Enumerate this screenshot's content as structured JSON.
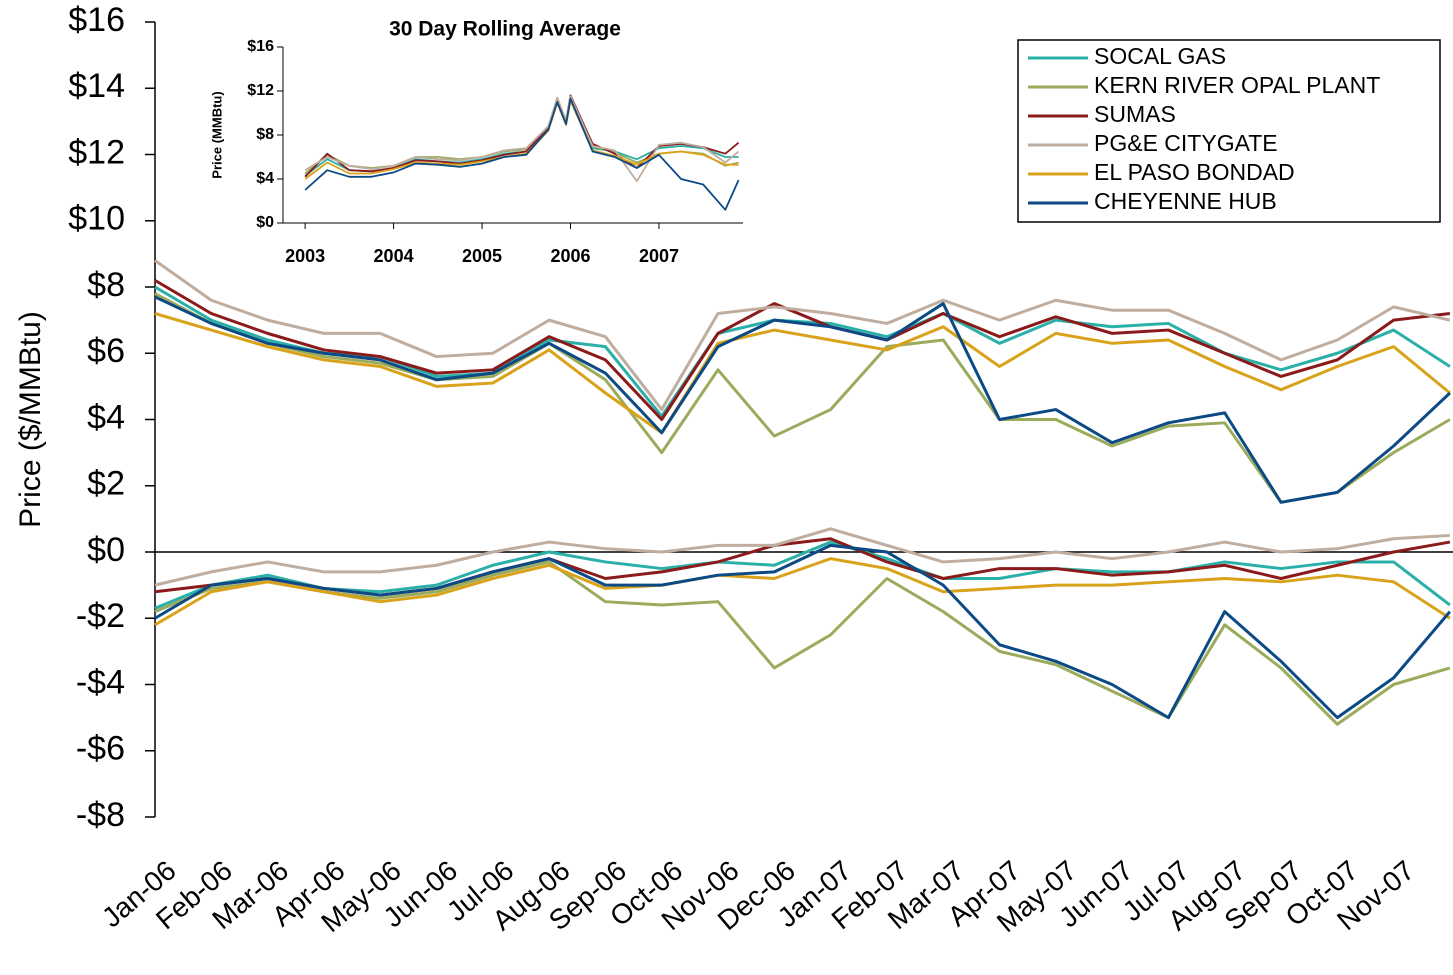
{
  "chart_data": [
    {
      "type": "line",
      "y_label": "Price ($/MMBtu)",
      "legend": "upper right",
      "categories": [
        "Jan-06",
        "Feb-06",
        "Mar-06",
        "Apr-06",
        "May-06",
        "Jun-06",
        "Jul-06",
        "Aug-06",
        "Sep-06",
        "Oct-06",
        "Nov-06",
        "Dec-06",
        "Jan-07",
        "Feb-07",
        "Mar-07",
        "Apr-07",
        "May-07",
        "Jun-07",
        "Jul-07",
        "Aug-07",
        "Sep-07",
        "Oct-07",
        "Nov-07",
        null
      ],
      "ylim": [
        -8,
        16
      ],
      "yticks": [
        {
          "value": 16,
          "label": "$16"
        },
        {
          "value": 14,
          "label": "$14"
        },
        {
          "value": 12,
          "label": "$12"
        },
        {
          "value": 10,
          "label": "$10"
        },
        {
          "value": 8,
          "label": "$8"
        },
        {
          "value": 6,
          "label": "$6"
        },
        {
          "value": 4,
          "label": "$4"
        },
        {
          "value": 2,
          "label": "$2"
        },
        {
          "value": 0,
          "label": "$0"
        },
        {
          "value": -2,
          "label": "-$2"
        },
        {
          "value": -4,
          "label": "-$4"
        },
        {
          "value": -6,
          "label": "-$6"
        },
        {
          "value": -8,
          "label": "-$8"
        }
      ],
      "series": [
        {
          "name": "SOCAL GAS",
          "color": "#2ab0a8",
          "values": [
            8,
            7.0,
            6.4,
            6.0,
            5.9,
            5.3,
            5.4,
            6.4,
            6.2,
            4.1,
            6.6,
            7.0,
            6.9,
            6.5,
            7.2,
            6.3,
            7.0,
            6.8,
            6.9,
            6.0,
            5.5,
            6.0,
            6.7,
            5.6
          ],
          "basis": [
            -1.7,
            -1.0,
            -0.7,
            -1.1,
            -1.2,
            -1.0,
            -0.4,
            0.0,
            -0.3,
            -0.5,
            -0.3,
            -0.4,
            0.3,
            -0.2,
            -0.8,
            -0.8,
            -0.5,
            -0.6,
            -0.6,
            -0.3,
            -0.5,
            -0.3,
            -0.3,
            -1.6
          ]
        },
        {
          "name": "KERN RIVER OPAL PLANT",
          "color": "#9aab5c",
          "values": [
            7.8,
            6.9,
            6.3,
            5.9,
            5.7,
            5.2,
            5.3,
            6.3,
            5.2,
            3.0,
            5.5,
            3.5,
            4.3,
            6.2,
            6.4,
            4.0,
            4.0,
            3.2,
            3.8,
            3.9,
            1.5,
            1.8,
            3.0,
            4.0
          ],
          "basis": [
            -1.8,
            -1.1,
            -0.9,
            -1.2,
            -1.4,
            -1.2,
            -0.7,
            -0.3,
            -1.5,
            -1.6,
            -1.5,
            -3.5,
            -2.5,
            -0.8,
            -1.8,
            -3.0,
            -3.4,
            -4.2,
            -5.0,
            -2.2,
            -3.5,
            -5.2,
            -4.0,
            -3.5
          ]
        },
        {
          "name": "SUMAS",
          "color": "#8b1a1a",
          "values": [
            8.2,
            7.2,
            6.6,
            6.1,
            5.9,
            5.4,
            5.5,
            6.5,
            5.8,
            4.0,
            6.6,
            7.5,
            6.8,
            6.4,
            7.2,
            6.5,
            7.1,
            6.6,
            6.7,
            6.0,
            5.3,
            5.8,
            7.0,
            7.2
          ],
          "basis": [
            -1.2,
            -1.0,
            -0.8,
            -1.1,
            -1.3,
            -1.1,
            -0.6,
            -0.2,
            -0.8,
            -0.6,
            -0.3,
            0.2,
            0.4,
            -0.3,
            -0.8,
            -0.5,
            -0.5,
            -0.7,
            -0.6,
            -0.4,
            -0.8,
            -0.4,
            0.0,
            0.3
          ]
        },
        {
          "name": "PG&E CITYGATE",
          "color": "#bfada0",
          "values": [
            8.8,
            7.6,
            7.0,
            6.6,
            6.6,
            5.9,
            6.0,
            7.0,
            6.5,
            4.3,
            7.2,
            7.4,
            7.2,
            6.9,
            7.6,
            7.0,
            7.6,
            7.3,
            7.3,
            6.6,
            5.8,
            6.4,
            7.4,
            7.0
          ],
          "basis": [
            -1.0,
            -0.6,
            -0.3,
            -0.6,
            -0.6,
            -0.4,
            0.0,
            0.3,
            0.1,
            0.0,
            0.2,
            0.2,
            0.7,
            0.2,
            -0.3,
            -0.2,
            0.0,
            -0.2,
            0.0,
            0.3,
            0.0,
            0.1,
            0.4,
            0.5
          ]
        },
        {
          "name": "EL PASO BONDAD",
          "color": "#d9a21b",
          "values": [
            7.2,
            6.7,
            6.2,
            5.8,
            5.6,
            5.0,
            5.1,
            6.1,
            4.8,
            3.6,
            6.3,
            6.7,
            6.4,
            6.1,
            6.8,
            5.6,
            6.6,
            6.3,
            6.4,
            5.6,
            4.9,
            5.6,
            6.2,
            4.8
          ],
          "basis": [
            -2.2,
            -1.2,
            -0.9,
            -1.2,
            -1.5,
            -1.3,
            -0.8,
            -0.4,
            -1.1,
            -1.0,
            -0.7,
            -0.8,
            -0.2,
            -0.5,
            -1.2,
            -1.1,
            -1.0,
            -1.0,
            -0.9,
            -0.8,
            -0.9,
            -0.7,
            -0.9,
            -2.0
          ]
        },
        {
          "name": "CHEYENNE HUB",
          "color": "#0c4a85",
          "values": [
            7.7,
            6.9,
            6.3,
            6.0,
            5.8,
            5.2,
            5.4,
            6.3,
            5.4,
            3.6,
            6.2,
            7.0,
            6.8,
            6.4,
            7.5,
            4.0,
            4.3,
            3.3,
            3.9,
            4.2,
            1.5,
            1.8,
            3.2,
            4.8
          ],
          "basis": [
            -2.0,
            -1.0,
            -0.8,
            -1.1,
            -1.3,
            -1.1,
            -0.6,
            -0.2,
            -1.0,
            -1.0,
            -0.7,
            -0.6,
            0.2,
            0.0,
            -1.0,
            -2.8,
            -3.3,
            -4.0,
            -5.0,
            -1.8,
            -3.3,
            -5.0,
            -3.8,
            -1.8
          ]
        }
      ]
    },
    {
      "type": "line",
      "title": "30 Day Rolling Average",
      "y_label": "Price (MMBtu)",
      "x": [
        2003,
        2003.25,
        2003.5,
        2003.75,
        2004,
        2004.25,
        2004.5,
        2004.75,
        2005,
        2005.25,
        2005.5,
        2005.75,
        2005.85,
        2005.95,
        2006,
        2006.25,
        2006.5,
        2006.75,
        2007,
        2007.25,
        2007.5,
        2007.75,
        2007.9
      ],
      "xlim": [
        2002.75,
        2007.95
      ],
      "xticks": [
        2003,
        2004,
        2005,
        2006,
        2007
      ],
      "ylim": [
        0,
        16
      ],
      "yticks": [
        {
          "value": 16,
          "label": "$16"
        },
        {
          "value": 12,
          "label": "$12"
        },
        {
          "value": 8,
          "label": "$8"
        },
        {
          "value": 4,
          "label": "$4"
        },
        {
          "value": 0,
          "label": "$0"
        }
      ],
      "series": [
        {
          "color": "#2ab0a8",
          "values": [
            4.3,
            5.8,
            4.8,
            4.7,
            5.0,
            5.8,
            5.6,
            5.5,
            5.8,
            6.3,
            6.5,
            8.5,
            11.0,
            9.0,
            11.2,
            6.8,
            6.5,
            5.8,
            6.8,
            7.0,
            6.8,
            6.0,
            6.0
          ]
        },
        {
          "color": "#9aab5c",
          "values": [
            4.5,
            6.2,
            5.2,
            5.0,
            5.2,
            6.0,
            6.0,
            5.8,
            6.0,
            6.5,
            6.7,
            8.8,
            11.2,
            9.2,
            11.5,
            7.0,
            6.4,
            5.5,
            6.3,
            6.5,
            6.3,
            5.2,
            5.5
          ]
        },
        {
          "color": "#8b1a1a",
          "values": [
            4.2,
            6.3,
            4.8,
            4.7,
            5.0,
            5.7,
            5.6,
            5.4,
            5.7,
            6.2,
            6.5,
            8.7,
            11.3,
            9.3,
            11.6,
            7.2,
            6.3,
            5.0,
            7.0,
            7.2,
            6.9,
            6.3,
            7.3
          ]
        },
        {
          "color": "#bfada0",
          "values": [
            4.8,
            6.0,
            5.2,
            4.9,
            5.2,
            6.0,
            5.8,
            5.7,
            6.0,
            6.6,
            6.8,
            8.8,
            11.4,
            9.3,
            11.5,
            7.0,
            6.6,
            3.8,
            7.1,
            7.3,
            6.9,
            5.5,
            6.5
          ]
        },
        {
          "color": "#d9a21b",
          "values": [
            4.0,
            5.5,
            4.5,
            4.5,
            4.9,
            5.5,
            5.4,
            5.3,
            5.6,
            6.0,
            6.3,
            8.4,
            10.9,
            8.9,
            11.1,
            6.6,
            6.1,
            5.3,
            6.3,
            6.5,
            6.2,
            5.3,
            5.3
          ]
        },
        {
          "color": "#0c4a85",
          "values": [
            3.0,
            4.8,
            4.2,
            4.2,
            4.6,
            5.4,
            5.3,
            5.1,
            5.4,
            6.0,
            6.2,
            8.5,
            11.0,
            9.0,
            11.3,
            6.5,
            6.0,
            5.0,
            6.2,
            4.0,
            3.5,
            1.2,
            3.9
          ]
        }
      ]
    }
  ]
}
